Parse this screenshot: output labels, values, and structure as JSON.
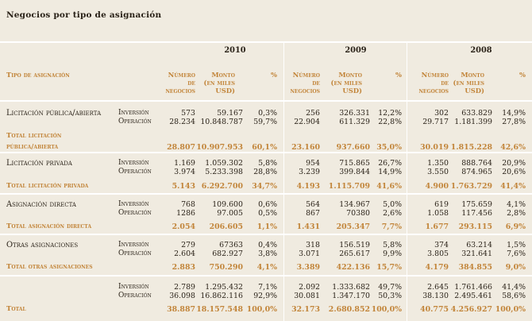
{
  "title": "Negocios por tipo de asignación",
  "years": [
    "2010",
    "2009",
    "2008"
  ],
  "headers": {
    "tipo": "Tipo de asignación",
    "numero": [
      "Número",
      "de",
      "negocios"
    ],
    "monto": [
      "Monto",
      "(en miles",
      "USD)"
    ],
    "pct": "%"
  },
  "groups": [
    {
      "label": "Licitación pública/abierta",
      "rows": [
        {
          "type": "Inversión",
          "vals": [
            "573",
            "59.167",
            "0,3%",
            "256",
            "326.331",
            "12,2%",
            "302",
            "633.829",
            "14,9%"
          ]
        },
        {
          "type": "Operación",
          "vals": [
            "28.234",
            "10.848.787",
            "59,7%",
            "22.904",
            "611.329",
            "22,8%",
            "29.717",
            "1.181.399",
            "27,8%"
          ]
        }
      ],
      "total_label": [
        "Total licitación",
        "pública/abierta"
      ],
      "total": [
        "28.807",
        "10.907.953",
        "60,1%",
        "23.160",
        "937.660",
        "35,0%",
        "30.019",
        "1.815.228",
        "42,6%"
      ]
    },
    {
      "label": "Licitación privada",
      "rows": [
        {
          "type": "Inversión",
          "vals": [
            "1.169",
            "1.059.302",
            "5,8%",
            "954",
            "715.865",
            "26,7%",
            "1.350",
            "888.764",
            "20,9%"
          ]
        },
        {
          "type": "Operación",
          "vals": [
            "3.974",
            "5.233.398",
            "28,8%",
            "3.239",
            "399.844",
            "14,9%",
            "3.550",
            "874.965",
            "20,6%"
          ]
        }
      ],
      "total_label": [
        "Total licitación privada"
      ],
      "total": [
        "5.143",
        "6.292.700",
        "34,7%",
        "4.193",
        "1.115.709",
        "41,6%",
        "4.900",
        "1.763.729",
        "41,4%"
      ]
    },
    {
      "label": "Asignación directa",
      "rows": [
        {
          "type": "Inversión",
          "vals": [
            "768",
            "109.600",
            "0,6%",
            "564",
            "134.967",
            "5,0%",
            "619",
            "175.659",
            "4,1%"
          ]
        },
        {
          "type": "Operación",
          "vals": [
            "1286",
            "97.005",
            "0,5%",
            "867",
            "70380",
            "2,6%",
            "1.058",
            "117.456",
            "2,8%"
          ]
        }
      ],
      "total_label": [
        "Total asignación directa"
      ],
      "total": [
        "2.054",
        "206.605",
        "1,1%",
        "1.431",
        "205.347",
        "7,7%",
        "1.677",
        "293.115",
        "6,9%"
      ]
    },
    {
      "label": "Otras asignaciones",
      "rows": [
        {
          "type": "Inversión",
          "vals": [
            "279",
            "67363",
            "0,4%",
            "318",
            "156.519",
            "5,8%",
            "374",
            "63.214",
            "1,5%"
          ]
        },
        {
          "type": "Operación",
          "vals": [
            "2.604",
            "682.927",
            "3,8%",
            "3.071",
            "265.617",
            "9,9%",
            "3.805",
            "321.641",
            "7,6%"
          ]
        }
      ],
      "total_label": [
        "Total otras asignaciones"
      ],
      "total": [
        "2.883",
        "750.290",
        "4,1%",
        "3.389",
        "422.136",
        "15,7%",
        "4.179",
        "384.855",
        "9,0%"
      ]
    },
    {
      "label": "",
      "rows": [
        {
          "type": "Inversión",
          "vals": [
            "2.789",
            "1.295.432",
            "7,1%",
            "2.092",
            "1.333.682",
            "49,7%",
            "2.645",
            "1.761.466",
            "41,4%"
          ]
        },
        {
          "type": "Operación",
          "vals": [
            "36.098",
            "16.862.116",
            "92,9%",
            "30.081",
            "1.347.170",
            "50,3%",
            "38.130",
            "2.495.461",
            "58,6%"
          ]
        }
      ],
      "total_label": [
        "Total"
      ],
      "total": [
        "38.887",
        "18.157.548",
        "100,0%",
        "32.173",
        "2.680.852",
        "100,0%",
        "40.775",
        "4.256.927",
        "100,0%"
      ]
    }
  ]
}
